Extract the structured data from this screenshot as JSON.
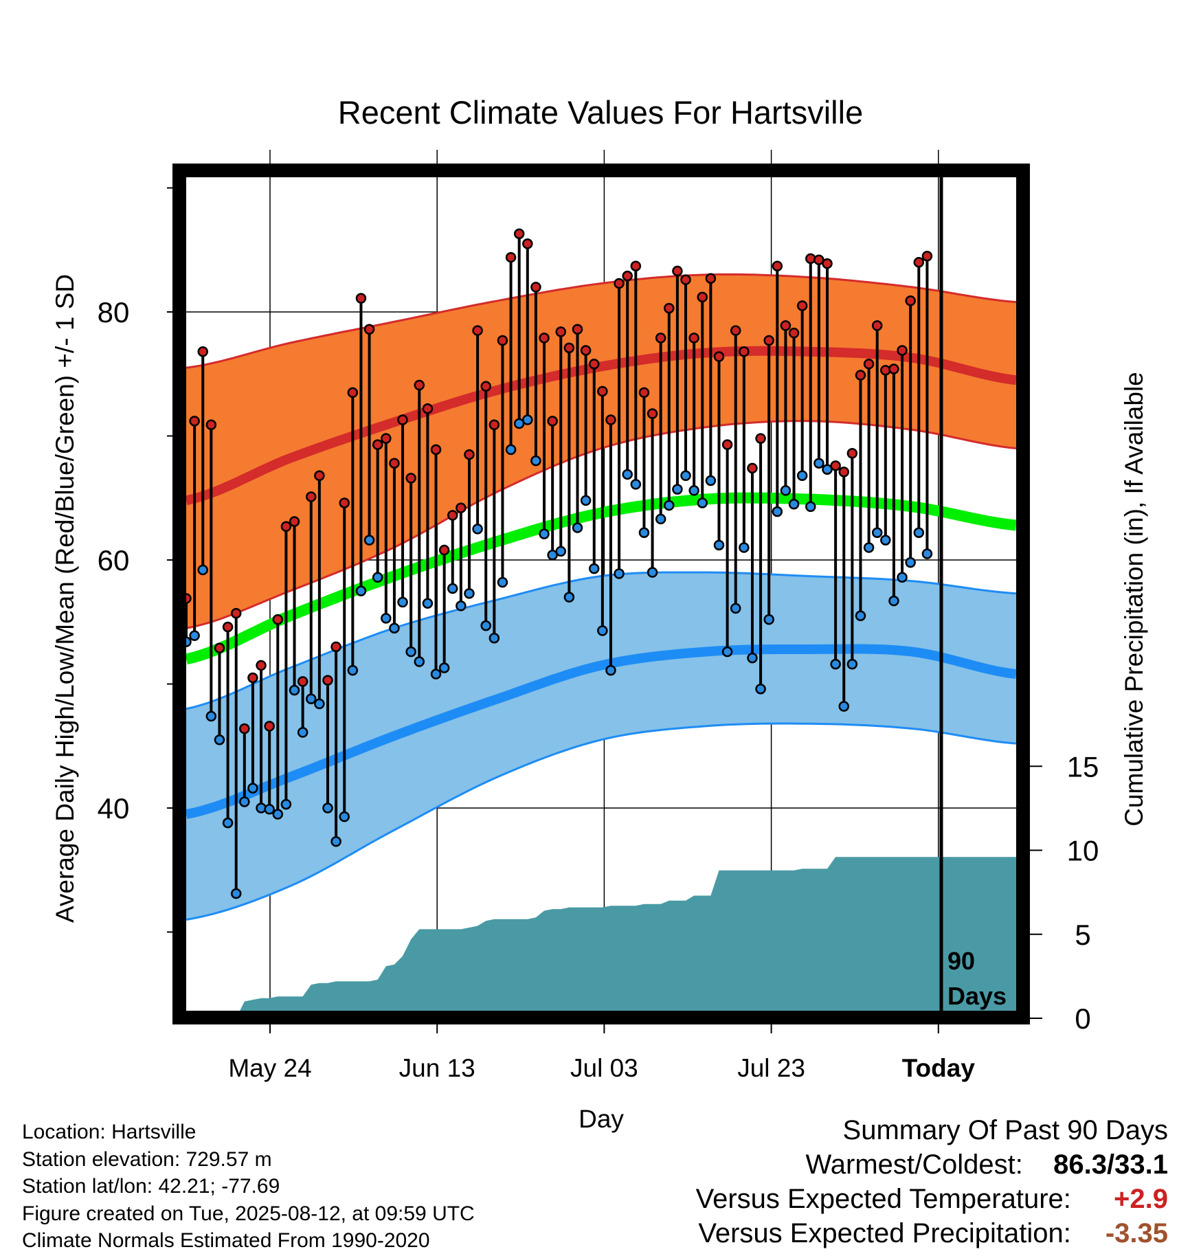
{
  "chart_data": {
    "type": "line",
    "title": "Recent Climate Values For Hartsville",
    "xlabel": "Day",
    "ylabel": "Average Daily High/Low/Mean (Red/Blue/Green) +/- 1 SD",
    "y2label": "Cumulative Precipitation (in), If Available",
    "x_tick_labels": [
      "May 24",
      "Jun 13",
      "Jul 03",
      "Jul 23",
      "Today"
    ],
    "ylim": [
      23,
      92
    ],
    "y_ticks": [
      40,
      60,
      80
    ],
    "y2lim": [
      0,
      24
    ],
    "y2_ticks": [
      0,
      5,
      10,
      15
    ],
    "grid": true,
    "today_marker_label": [
      "90",
      "Days"
    ],
    "colors": {
      "high_band": "#f47b30",
      "high_mean_line": "#d42b2b",
      "low_band": "#85c1e8",
      "low_mean_line": "#1e8cf5",
      "mean_line": "#00ee00",
      "precip_fill": "#4a9aa5",
      "high_point": "#cc2222",
      "low_point": "#2a8ae0"
    },
    "normal_high_mean": [
      64.8,
      68.2,
      71.1,
      73.7,
      75.6,
      76.7,
      76.8,
      76.3,
      74.5
    ],
    "normal_high_upper": [
      75.5,
      77.5,
      79.2,
      80.9,
      82.3,
      83.0,
      82.8,
      82.0,
      80.8
    ],
    "normal_high_lower": [
      54.5,
      57.5,
      61.0,
      65.5,
      69.0,
      70.7,
      71.2,
      70.5,
      69.0
    ],
    "normal_mean": [
      52.0,
      55.5,
      58.7,
      61.5,
      63.8,
      64.9,
      64.9,
      64.3,
      62.8
    ],
    "normal_low_mean": [
      39.5,
      42.5,
      45.8,
      48.8,
      51.5,
      52.6,
      52.8,
      52.6,
      50.8
    ],
    "normal_low_upper": [
      48.0,
      51.3,
      54.5,
      56.8,
      58.7,
      59.0,
      58.7,
      58.3,
      57.3
    ],
    "normal_low_lower": [
      31.0,
      33.7,
      38.2,
      42.5,
      45.5,
      46.6,
      46.8,
      46.4,
      45.2
    ],
    "daily_high": [
      56.9,
      71.2,
      76.8,
      70.9,
      52.9,
      54.6,
      55.7,
      46.4,
      50.5,
      51.5,
      46.6,
      55.2,
      62.7,
      63.1,
      50.2,
      65.1,
      66.8,
      50.3,
      53.0,
      64.6,
      73.5,
      81.1,
      78.6,
      69.3,
      69.8,
      67.8,
      71.3,
      66.6,
      74.1,
      72.2,
      68.9,
      60.8,
      63.6,
      64.2,
      68.5,
      78.5,
      74.0,
      70.9,
      77.7,
      84.4,
      86.3,
      85.5,
      82.0,
      77.9,
      71.2,
      78.4,
      77.1,
      78.6,
      76.9,
      75.8,
      73.6,
      71.3,
      82.3,
      82.9,
      83.7,
      73.5,
      71.8,
      77.9,
      80.3,
      83.3,
      82.6,
      77.9,
      81.2,
      82.7,
      76.4,
      69.3,
      78.5,
      76.8,
      67.4,
      69.8,
      77.7,
      83.7,
      78.9,
      78.3,
      80.5,
      84.3,
      84.2,
      83.9,
      67.6,
      67.1,
      68.6,
      74.9,
      75.8,
      78.9,
      75.3,
      75.4,
      76.9,
      80.9,
      84.0,
      84.5
    ],
    "daily_low": [
      53.4,
      53.9,
      59.2,
      47.4,
      45.5,
      38.8,
      33.1,
      40.5,
      41.6,
      40.0,
      39.9,
      39.5,
      40.3,
      49.5,
      46.1,
      48.8,
      48.4,
      40.0,
      37.3,
      39.3,
      51.1,
      57.5,
      61.6,
      58.6,
      55.3,
      54.5,
      56.6,
      52.6,
      51.8,
      56.5,
      50.8,
      51.3,
      57.7,
      56.3,
      57.3,
      62.5,
      54.7,
      53.7,
      58.2,
      68.9,
      71.0,
      71.3,
      68.0,
      62.1,
      60.4,
      60.7,
      57.0,
      62.6,
      64.8,
      59.3,
      54.3,
      51.1,
      58.9,
      66.9,
      66.1,
      62.2,
      59.0,
      63.3,
      64.4,
      65.7,
      66.8,
      65.6,
      64.6,
      66.4,
      61.2,
      52.6,
      56.1,
      61.0,
      52.1,
      49.6,
      55.2,
      63.9,
      65.6,
      64.5,
      66.8,
      64.3,
      67.8,
      67.3,
      51.6,
      48.2,
      51.6,
      55.5,
      61.0,
      62.2,
      61.6,
      56.7,
      58.6,
      59.8,
      62.2,
      60.5
    ],
    "cumulative_precip": [
      0.0,
      0.0,
      0.0,
      0.0,
      0.0,
      0.0,
      0.0,
      1.0,
      1.1,
      1.2,
      1.2,
      1.3,
      1.3,
      1.3,
      1.3,
      2.0,
      2.1,
      2.1,
      2.2,
      2.2,
      2.2,
      2.2,
      2.2,
      2.3,
      3.1,
      3.2,
      3.7,
      4.7,
      5.3,
      5.3,
      5.3,
      5.3,
      5.3,
      5.3,
      5.4,
      5.5,
      5.8,
      5.9,
      5.9,
      5.9,
      5.9,
      5.9,
      6.0,
      6.4,
      6.5,
      6.5,
      6.6,
      6.6,
      6.6,
      6.6,
      6.6,
      6.7,
      6.7,
      6.7,
      6.7,
      6.8,
      6.8,
      6.8,
      7.0,
      7.0,
      7.0,
      7.3,
      7.3,
      7.3,
      8.8,
      8.8,
      8.8,
      8.8,
      8.8,
      8.8,
      8.8,
      8.8,
      8.8,
      8.8,
      8.9,
      8.9,
      8.9,
      8.9,
      9.6,
      9.6,
      9.6,
      9.6,
      9.6,
      9.6,
      9.6,
      9.6,
      9.6,
      9.6,
      9.6,
      9.6
    ]
  },
  "meta": {
    "location": "Location: Hartsville",
    "elevation": "Station elevation: 729.57 m",
    "latlon": "Station lat/lon: 42.21; -77.69",
    "created": "Figure created on Tue, 2025-08-12, at 09:59 UTC",
    "normals": "Climate Normals Estimated From 1990-2020"
  },
  "summary": {
    "header": "Summary Of Past 90 Days",
    "warmest_label": "Warmest/Coldest:",
    "warmest_value": "86.3/33.1",
    "temp_label": "Versus Expected Temperature:",
    "temp_value": "+2.9",
    "temp_color": "#cc2222",
    "precip_label": "Versus Expected Precipitation:",
    "precip_value": "-3.35",
    "precip_color": "#a0522d"
  }
}
